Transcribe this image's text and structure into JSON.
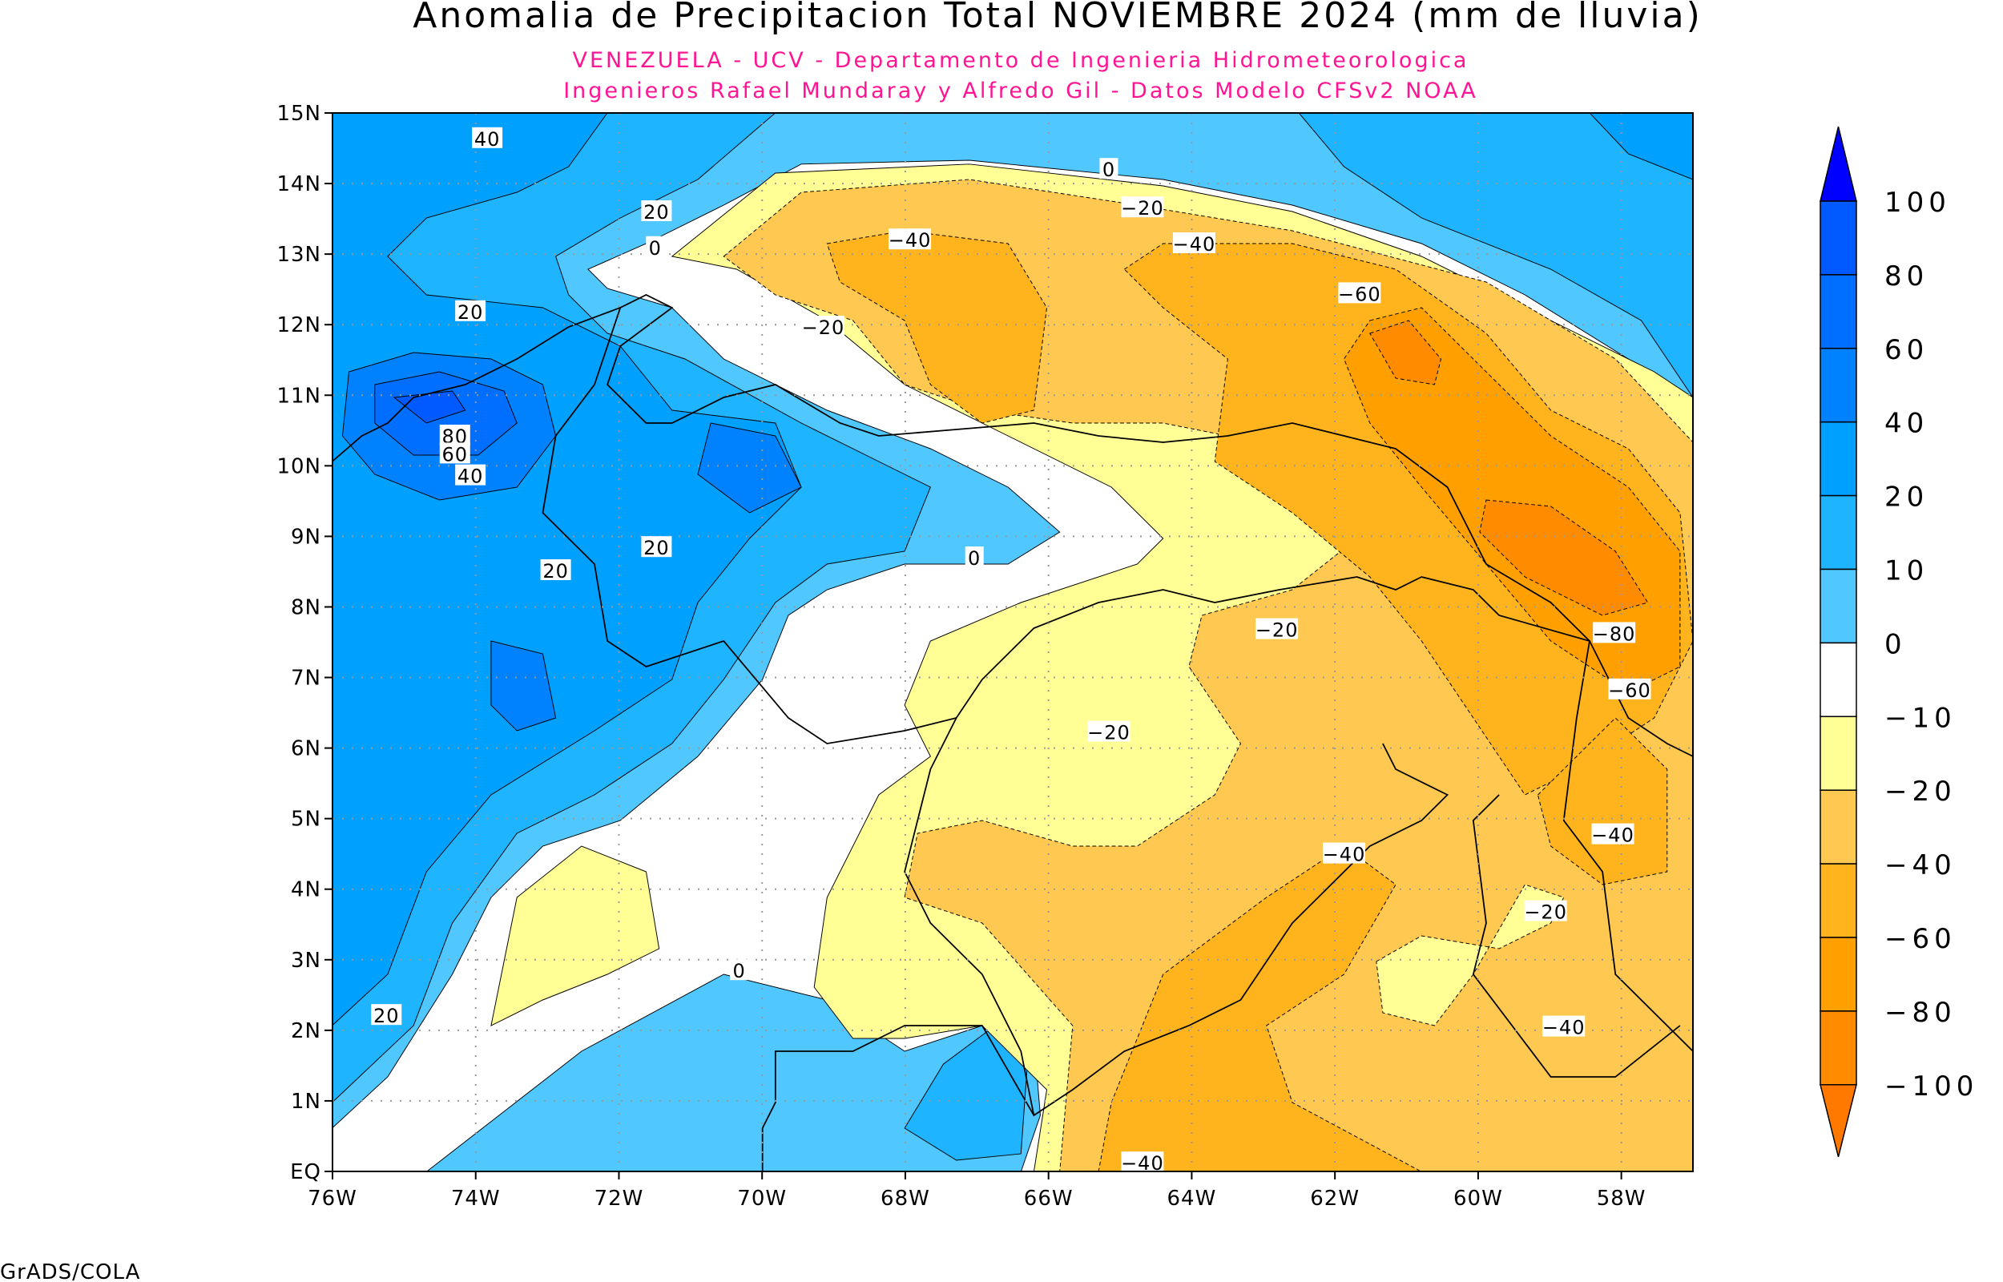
{
  "chart_data": {
    "type": "heatmap",
    "title": "Anomalia de Precipitacion Total NOVIEMBRE 2024 (mm de lluvia)",
    "subtitle_lines": [
      "VENEZUELA - UCV - Departamento de Ingenieria Hidrometeorologica",
      "Ingenieros Rafael Mundaray y Alfredo Gil - Datos Modelo CFSv2 NOAA"
    ],
    "x_range_lon": [
      -76,
      -57
    ],
    "y_range_lat": [
      0,
      15
    ],
    "x_ticks": [
      "76W",
      "74W",
      "72W",
      "70W",
      "68W",
      "66W",
      "64W",
      "62W",
      "60W",
      "58W"
    ],
    "y_ticks": [
      "EQ",
      "1N",
      "2N",
      "3N",
      "4N",
      "5N",
      "6N",
      "7N",
      "8N",
      "9N",
      "10N",
      "11N",
      "12N",
      "13N",
      "14N",
      "15N"
    ],
    "grid": true,
    "colorbar": {
      "placement": "right",
      "levels": [
        "100",
        "80",
        "60",
        "40",
        "20",
        "10",
        "0",
        "−10",
        "−20",
        "−40",
        "−60",
        "−80",
        "−100"
      ],
      "colors": [
        "#0000ff",
        "#005aff",
        "#006eff",
        "#0082ff",
        "#00a0ff",
        "#1eb4ff",
        "#50c8ff",
        "#ffffff",
        "#ffff96",
        "#ffc850",
        "#ffb41e",
        "#ffa000",
        "#ff8c00",
        "#ff7800"
      ]
    },
    "contour_labels": [
      "40",
      "20",
      "0",
      "20",
      "80",
      "60",
      "40",
      "20",
      "20",
      "0",
      "0",
      "−20",
      "−40",
      "−40",
      "−20",
      "−60",
      "−20",
      "−20",
      "−80",
      "−60",
      "−40",
      "−40",
      "−20",
      "−40",
      "0",
      "20",
      "−40"
    ]
  },
  "footer": "GrADS/COLA"
}
